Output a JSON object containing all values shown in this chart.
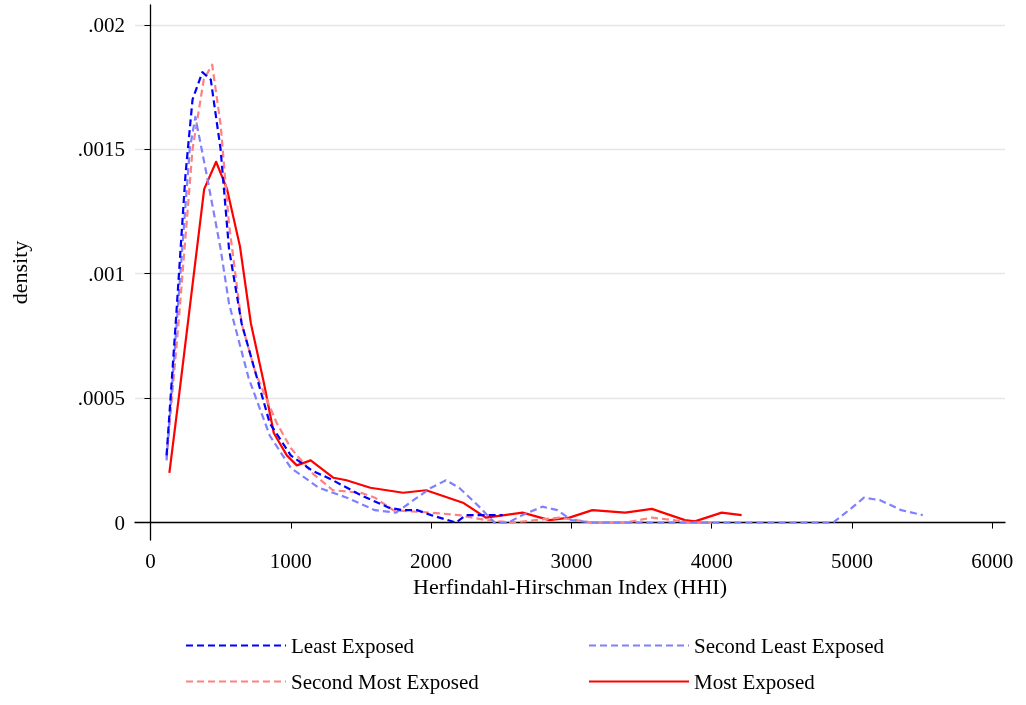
{
  "chart_data": {
    "type": "line",
    "xlabel": "Herfindahl-Hirschman Index (HHI)",
    "ylabel": "density",
    "xlim": [
      -110,
      6090
    ],
    "xticks": [
      0,
      1000,
      2000,
      3000,
      4000,
      5000,
      6000
    ],
    "ylim": [
      -7e-05,
      0.00208
    ],
    "yticks": [
      0,
      {
        "value": 0.0005,
        "label": ".0005"
      },
      {
        "value": 0.001,
        "label": ".001"
      },
      {
        "value": 0.0015,
        "label": ".0015"
      },
      {
        "value": 0.002,
        "label": ".002"
      }
    ],
    "grid": "y",
    "legend": "bottom",
    "marker": "none",
    "series": [
      {
        "name": "Least Exposed",
        "color": "#0000ff",
        "line_style": "dashed",
        "x": [
          115,
          180,
          250,
          300,
          370,
          430,
          500,
          560,
          650,
          750,
          850,
          1000,
          1150,
          1300,
          1500,
          1700,
          1800,
          1900,
          2000,
          2177,
          2248,
          2350,
          2510
        ],
        "values": [
          0.00027,
          0.0008,
          0.0014,
          0.0017,
          0.00181,
          0.00178,
          0.0015,
          0.0011,
          0.0008,
          0.0006,
          0.0004,
          0.00027,
          0.00021,
          0.00017,
          0.00011,
          6e-05,
          5e-05,
          5e-05,
          3e-05,
          0,
          3e-05,
          3e-05,
          3e-05
        ]
      },
      {
        "name": "Second Least Exposed",
        "color": "#8080ff",
        "line_style": "dashed",
        "x": [
          115,
          200,
          280,
          320,
          400,
          500,
          560,
          700,
          850,
          1000,
          1200,
          1400,
          1600,
          1750,
          1900,
          2000,
          2106,
          2200,
          2350,
          2450,
          2550,
          2650,
          2794,
          2900,
          3000,
          3150,
          4865,
          5000,
          5085,
          5200,
          5350,
          5504
        ],
        "values": [
          0.00025,
          0.0009,
          0.0015,
          0.00163,
          0.0014,
          0.0011,
          0.00088,
          0.00058,
          0.00035,
          0.00022,
          0.00014,
          0.0001,
          5e-05,
          4e-05,
          0.0001,
          0.00014,
          0.00017,
          0.00014,
          6e-05,
          0,
          0,
          3e-05,
          6.4e-05,
          5e-05,
          1e-05,
          0,
          0,
          6e-05,
          0.0001,
          9e-05,
          5e-05,
          3e-05
        ]
      },
      {
        "name": "Second Most Exposed",
        "color": "#ff8080",
        "line_style": "dashed",
        "x": [
          115,
          200,
          300,
          380,
          440,
          500,
          560,
          650,
          750,
          900,
          1000,
          1150,
          1300,
          1500,
          1600,
          1730,
          2000,
          2200,
          2390,
          2580,
          2915,
          3150,
          3390,
          3574,
          3730,
          3850,
          4000
        ],
        "values": [
          0.00026,
          0.0008,
          0.0015,
          0.00178,
          0.00184,
          0.0016,
          0.0012,
          0.0008,
          0.0006,
          0.0004,
          0.0003,
          0.0002,
          0.00013,
          0.00012,
          0.0001,
          5e-05,
          4e-05,
          3e-05,
          1e-05,
          0,
          2e-05,
          0,
          0,
          2e-05,
          1e-05,
          0,
          0
        ]
      },
      {
        "name": "Most Exposed",
        "color": "#ff0000",
        "line_style": "solid",
        "x": [
          135,
          206,
          383,
          468,
          546,
          638,
          716,
          809,
          879,
          972,
          1043,
          1142,
          1305,
          1397,
          1567,
          1801,
          1965,
          2227,
          2390,
          2652,
          2844,
          2986,
          3149,
          3383,
          3574,
          3809,
          3880,
          4071,
          4213
        ],
        "values": [
          0.0002,
          0.00052,
          0.00134,
          0.00145,
          0.00134,
          0.00111,
          0.0008,
          0.00056,
          0.00036,
          0.00027,
          0.00023,
          0.00025,
          0.00018,
          0.00017,
          0.00014,
          0.00012,
          0.00013,
          8e-05,
          2e-05,
          4e-05,
          1e-05,
          2e-05,
          5e-05,
          4e-05,
          5.5e-05,
          1e-05,
          5e-06,
          4e-05,
          3e-05
        ]
      }
    ]
  }
}
